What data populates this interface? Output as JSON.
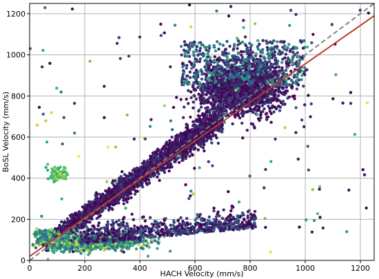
{
  "chart_data": {
    "type": "scatter",
    "title": "",
    "xlabel": "HACH Velocity (mm/s)",
    "ylabel": "BoSL Velocity (mm/s)",
    "xlim": [
      0,
      1250
    ],
    "ylim": [
      0,
      1250
    ],
    "xticks": [
      0,
      200,
      400,
      600,
      800,
      1000,
      1200
    ],
    "yticks": [
      0,
      200,
      400,
      600,
      800,
      1000,
      1200
    ],
    "grid": true,
    "colormap": [
      "#440154",
      "#31688e",
      "#35b779",
      "#fde725"
    ],
    "lines": [
      {
        "style": "dashed",
        "color": "#808080",
        "points": [
          [
            0,
            0
          ],
          [
            1250,
            1250
          ]
        ]
      },
      {
        "style": "solid",
        "color": "#c0392b",
        "points": [
          [
            0,
            20
          ],
          [
            1250,
            1190
          ]
        ]
      }
    ],
    "clusters": [
      {
        "desc": "main diagonal band",
        "x": [
          60,
          700
        ],
        "y_of_x": "0.98x+20",
        "spread": 45,
        "n": 2600,
        "color_range": [
          0.0,
          0.2
        ]
      },
      {
        "desc": "upper dense cloud",
        "center": [
          770,
          840
        ],
        "sx": 110,
        "sy": 90,
        "n": 1800,
        "color_range": [
          0.0,
          0.25
        ]
      },
      {
        "desc": "top scatter",
        "x": [
          550,
          1000
        ],
        "y": [
          850,
          1070
        ],
        "n": 500,
        "color_range": [
          0.1,
          0.6
        ]
      },
      {
        "desc": "low-velocity floor band",
        "x": [
          0,
          450
        ],
        "y": [
          60,
          160
        ],
        "n": 1300,
        "color_range": [
          0.3,
          0.95
        ]
      },
      {
        "desc": "lower branch",
        "x": [
          180,
          820
        ],
        "y": [
          90,
          340
        ],
        "n": 700,
        "color_range": [
          0.0,
          0.4
        ]
      },
      {
        "desc": "left green cluster",
        "center": [
          100,
          420
        ],
        "sx": 25,
        "sy": 25,
        "n": 90,
        "color_range": [
          0.6,
          0.9
        ]
      },
      {
        "desc": "outliers",
        "x": [
          0,
          1230
        ],
        "y": [
          0,
          1250
        ],
        "n": 160,
        "color_range": [
          0.0,
          1.0
        ]
      }
    ]
  }
}
